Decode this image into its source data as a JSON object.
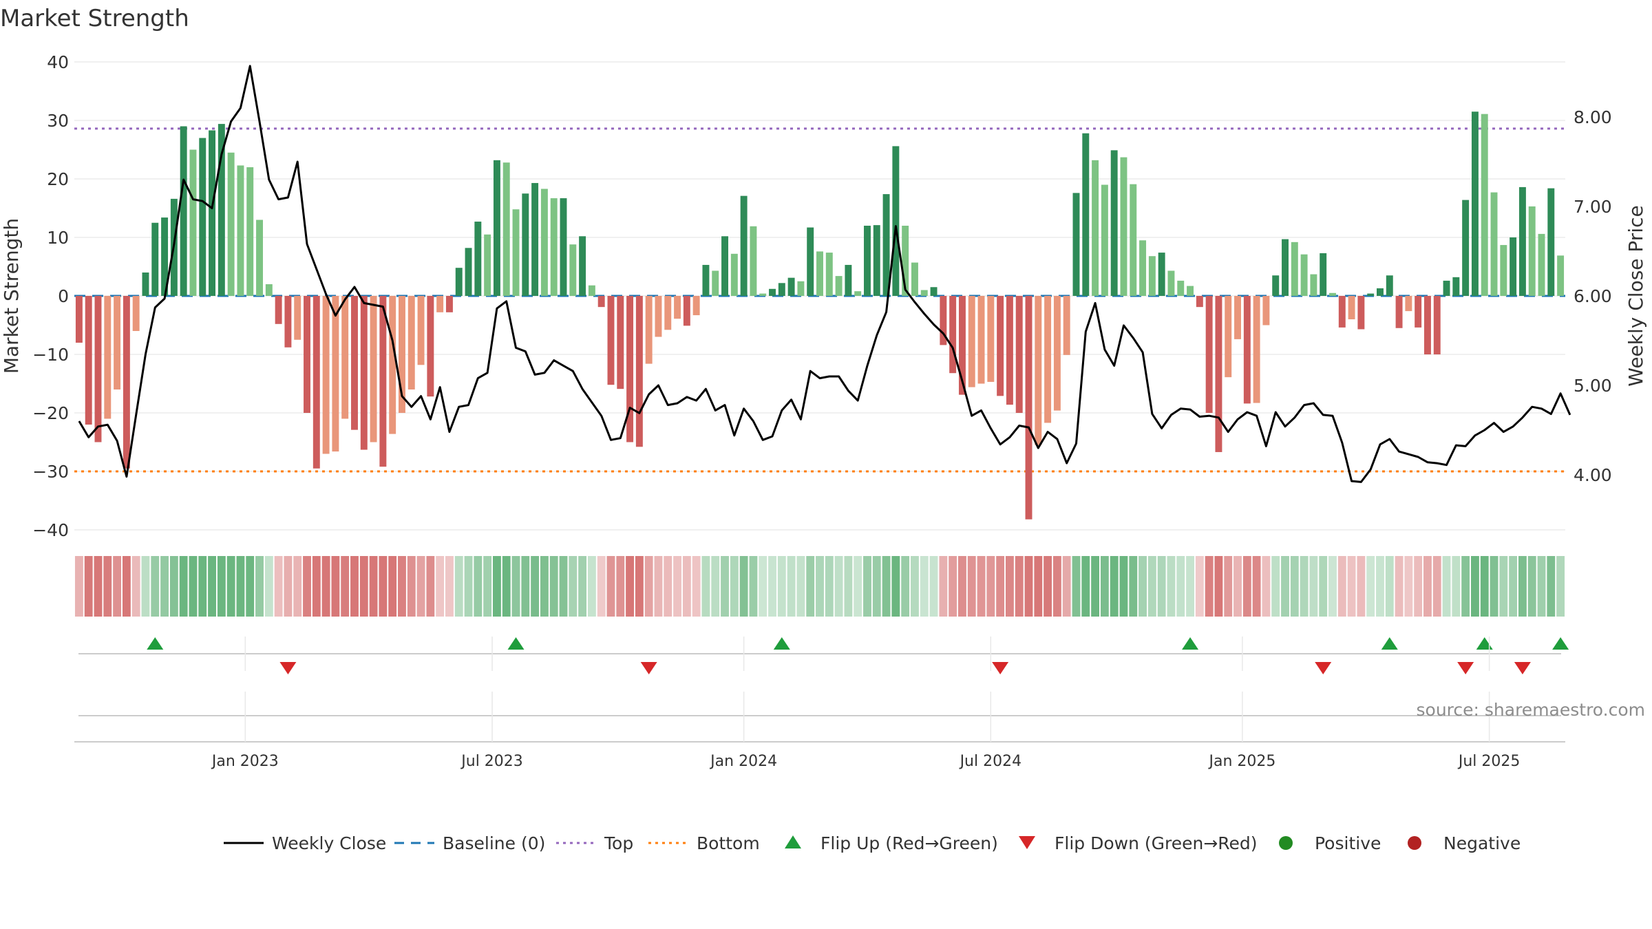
{
  "chart_data": {
    "type": "bar",
    "title": "Market Strength",
    "ylabel_left": "Market Strength",
    "ylabel_right": "Weekly Close Price",
    "ylim_left": [
      -42,
      42
    ],
    "ylim_right": [
      3.5,
      8.5
    ],
    "yticks_left": [
      "40",
      "30",
      "20",
      "10",
      "0",
      "−10",
      "−20",
      "−30",
      "−40"
    ],
    "yticks_left_values": [
      40,
      30,
      20,
      10,
      0,
      -10,
      -20,
      -30,
      -40
    ],
    "yticks_right": [
      "8.00",
      "7.00",
      "6.00",
      "5.00",
      "4.00"
    ],
    "yticks_right_values": [
      8,
      7,
      6,
      5,
      4
    ],
    "xticks": [
      "Jan 2023",
      "Jul 2023",
      "Jan 2024",
      "Jul 2024",
      "Jan 2025",
      "Jul 2025"
    ],
    "xticks_week_index": [
      17.5,
      43.5,
      70,
      96,
      122.5,
      148.5
    ],
    "top_line": 28.6,
    "bottom_line": -30,
    "strength": [
      -8,
      -22,
      -25,
      -21,
      -16,
      -29.5,
      -6,
      4,
      12.5,
      13.4,
      16.6,
      29,
      25,
      27,
      28.3,
      29.4,
      24.5,
      22.3,
      22,
      13,
      2,
      -4.8,
      -8.8,
      -7.5,
      -20,
      -29.5,
      -27,
      -26.6,
      -21,
      -22.9,
      -26.3,
      -25,
      -29.2,
      -23.6,
      -20,
      -16,
      -11.8,
      -17.2,
      -2.8,
      -2.8,
      4.8,
      8.2,
      12.7,
      10.5,
      23.2,
      22.8,
      14.8,
      17.5,
      19.3,
      18.3,
      16.7,
      16.7,
      8.8,
      10.2,
      1.8,
      -1.9,
      -15.2,
      -15.9,
      -25,
      -25.8,
      -11.6,
      -7,
      -5.8,
      -3.9,
      -5.1,
      -3.3,
      5.3,
      4.3,
      10.2,
      7.2,
      17.1,
      11.9,
      0.4,
      1.2,
      2.2,
      3.1,
      2.5,
      11.7,
      7.6,
      7.4,
      3.4,
      5.3,
      0.8,
      12,
      12.1,
      17.4,
      25.6,
      12,
      5.7,
      1,
      1.5,
      -8.4,
      -13.2,
      -16.9,
      -15.6,
      -15,
      -14.7,
      -17.1,
      -18.6,
      -20,
      -38.2,
      -25.5,
      -21.7,
      -19.6,
      -10.1,
      17.6,
      27.8,
      23.2,
      19,
      24.9,
      23.7,
      19.1,
      9.5,
      6.8,
      7.4,
      4.3,
      2.6,
      1.7,
      -1.9,
      -20,
      -26.7,
      -13.9,
      -7.4,
      -18.4,
      -18.3,
      -5,
      3.5,
      9.7,
      9.2,
      7.1,
      3.7,
      7.3,
      0.5,
      -5.4,
      -4,
      -5.7,
      0.4,
      1.3,
      3.5,
      -5.5,
      -2.6,
      -5.4,
      -10,
      -10,
      2.6,
      3.2,
      16.4,
      31.5,
      31.1,
      17.7,
      8.7,
      10,
      18.6,
      15.3,
      10.6,
      18.4,
      6.9
    ],
    "weekly_close": [
      4.6,
      4.42,
      4.54,
      4.56,
      4.38,
      3.98,
      4.67,
      5.35,
      5.87,
      5.97,
      6.58,
      7.3,
      7.08,
      7.06,
      6.98,
      7.58,
      7.95,
      8.1,
      8.57,
      7.95,
      7.3,
      7.08,
      7.1,
      7.5,
      6.58,
      6.3,
      6.02,
      5.78,
      5.96,
      6.1,
      5.92,
      5.9,
      5.88,
      5.5,
      4.88,
      4.76,
      4.88,
      4.62,
      4.98,
      4.48,
      4.76,
      4.78,
      5.08,
      5.14,
      5.86,
      5.94,
      5.42,
      5.38,
      5.12,
      5.14,
      5.28,
      5.22,
      5.16,
      4.96,
      4.81,
      4.66,
      4.39,
      4.41,
      4.75,
      4.69,
      4.9,
      5,
      4.78,
      4.8,
      4.87,
      4.83,
      4.96,
      4.72,
      4.78,
      4.44,
      4.74,
      4.6,
      4.39,
      4.43,
      4.72,
      4.84,
      4.62,
      5.16,
      5.08,
      5.1,
      5.1,
      4.94,
      4.83,
      5.22,
      5.56,
      5.82,
      6.78,
      6.07,
      5.93,
      5.8,
      5.68,
      5.58,
      5.42,
      5.05,
      4.66,
      4.72,
      4.52,
      4.34,
      4.42,
      4.55,
      4.53,
      4.3,
      4.48,
      4.4,
      4.13,
      4.35,
      5.6,
      5.92,
      5.4,
      5.22,
      5.67,
      5.53,
      5.37,
      4.68,
      4.52,
      4.67,
      4.74,
      4.73,
      4.65,
      4.66,
      4.64,
      4.48,
      4.62,
      4.7,
      4.66,
      4.32,
      4.7,
      4.54,
      4.64,
      4.78,
      4.8,
      4.67,
      4.66,
      4.36,
      3.93,
      3.92,
      4.06,
      4.34,
      4.4,
      4.26,
      4.23,
      4.2,
      4.14,
      4.13,
      4.11,
      4.33,
      4.32,
      4.44,
      4.5,
      4.58,
      4.48,
      4.54,
      4.64,
      4.76,
      4.74,
      4.68,
      4.91,
      4.67
    ],
    "flip_up_week": [
      8,
      46,
      74,
      117,
      138,
      148,
      156
    ],
    "flip_down_week": [
      22,
      60,
      97,
      131,
      146,
      152
    ],
    "legend": [
      "Weekly Close",
      "Baseline (0)",
      "Top",
      "Bottom",
      "Flip Up (Red→Green)",
      "Flip Down (Green→Red)",
      "Positive",
      "Negative"
    ]
  },
  "colors": {
    "pos_strong": "#2e8b57",
    "pos_light": "#7dc383",
    "neg_strong": "#cd5c5c",
    "neg_light": "#e9967a",
    "close_line": "#000000",
    "baseline": "#1f77b4",
    "top": "#9467bd",
    "bottom": "#ff7f0e",
    "flip_up": "#1f9d3c",
    "flip_down": "#d62728",
    "positive_marker": "#228b22",
    "negative_marker": "#b22222",
    "grid": "#ebebeb",
    "text": "#333333"
  },
  "source": "source: sharemaestro.com"
}
